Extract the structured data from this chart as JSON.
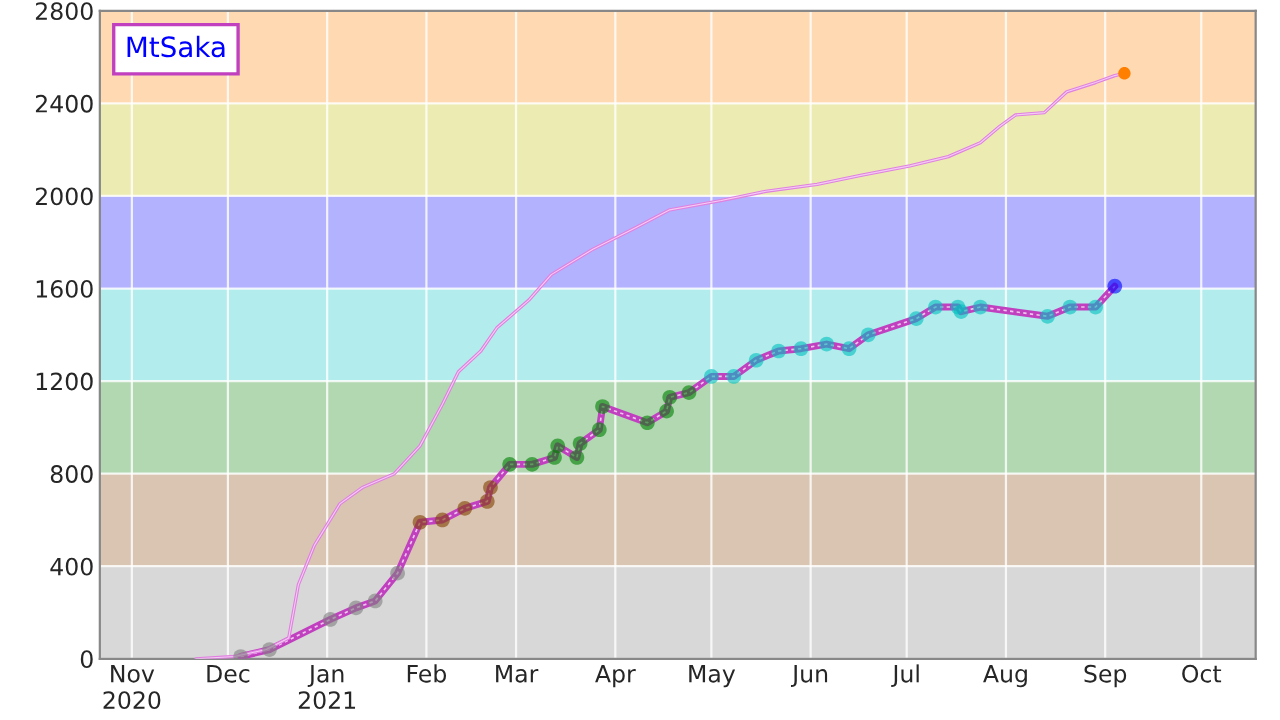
{
  "chart_data": {
    "type": "line",
    "xlim": [
      "2020-10-22",
      "2021-10-18"
    ],
    "ylim": [
      0,
      2800
    ],
    "xticks": [
      {
        "value": "2020-11-01",
        "label": "Nov\n2020"
      },
      {
        "value": "2020-12-01",
        "label": "Dec"
      },
      {
        "value": "2021-01-01",
        "label": "Jan\n2021"
      },
      {
        "value": "2021-02-01",
        "label": "Feb"
      },
      {
        "value": "2021-03-01",
        "label": "Mar"
      },
      {
        "value": "2021-04-01",
        "label": "Apr"
      },
      {
        "value": "2021-05-01",
        "label": "May"
      },
      {
        "value": "2021-06-01",
        "label": "Jun"
      },
      {
        "value": "2021-07-01",
        "label": "Jul"
      },
      {
        "value": "2021-08-01",
        "label": "Aug"
      },
      {
        "value": "2021-09-01",
        "label": "Sep"
      },
      {
        "value": "2021-10-01",
        "label": "Oct"
      }
    ],
    "yticks": [
      0,
      400,
      800,
      1200,
      1600,
      2000,
      2400,
      2800
    ],
    "grid": true,
    "legend": "top left",
    "bands": [
      {
        "axis": "y",
        "from": 0,
        "to": 400,
        "color": "#d8d8d8"
      },
      {
        "axis": "y",
        "from": 400,
        "to": 800,
        "color": "#d9c5b2"
      },
      {
        "axis": "y",
        "from": 800,
        "to": 1200,
        "color": "#b2d8b2"
      },
      {
        "axis": "y",
        "from": 1200,
        "to": 1600,
        "color": "#b2ecec"
      },
      {
        "axis": "y",
        "from": 1600,
        "to": 2000,
        "color": "#b2b2ff"
      },
      {
        "axis": "y",
        "from": 2000,
        "to": 2400,
        "color": "#ececb2"
      },
      {
        "axis": "y",
        "from": 2400,
        "to": 2800,
        "color": "#ffd9b2"
      }
    ],
    "series": [
      {
        "name": "MtSaka",
        "marker": "circle",
        "color": "#c040c0",
        "x": [
          "2020-12-05",
          "2020-12-14",
          "2021-01-02",
          "2021-01-10",
          "2021-01-16",
          "2021-01-23",
          "2021-01-30",
          "2021-02-06",
          "2021-02-13",
          "2021-02-20",
          "2021-02-21",
          "2021-02-27",
          "2021-03-06",
          "2021-03-13",
          "2021-03-14",
          "2021-03-20",
          "2021-03-21",
          "2021-03-27",
          "2021-03-28",
          "2021-04-11",
          "2021-04-17",
          "2021-04-18",
          "2021-04-24",
          "2021-05-01",
          "2021-05-08",
          "2021-05-15",
          "2021-05-22",
          "2021-05-29",
          "2021-06-06",
          "2021-06-13",
          "2021-06-19",
          "2021-07-04",
          "2021-07-10",
          "2021-07-17",
          "2021-07-18",
          "2021-07-24",
          "2021-08-14",
          "2021-08-21",
          "2021-08-29",
          "2021-09-04"
        ],
        "values": [
          10,
          40,
          170,
          220,
          250,
          370,
          590,
          600,
          650,
          680,
          740,
          840,
          840,
          870,
          920,
          870,
          930,
          990,
          1090,
          1020,
          1070,
          1130,
          1150,
          1220,
          1220,
          1290,
          1330,
          1340,
          1360,
          1340,
          1400,
          1470,
          1520,
          1520,
          1500,
          1520,
          1480,
          1520,
          1520,
          1610
        ],
        "colors": [
          "#808080",
          "#808080",
          "#808080",
          "#808080",
          "#808080",
          "#808080",
          "#804000",
          "#804000",
          "#804000",
          "#804000",
          "#804000",
          "#008000",
          "#008000",
          "#008000",
          "#008000",
          "#008000",
          "#008000",
          "#008000",
          "#008000",
          "#008000",
          "#008000",
          "#008000",
          "#008000",
          "#00c0c0",
          "#00c0c0",
          "#00c0c0",
          "#00c0c0",
          "#00c0c0",
          "#00c0c0",
          "#00c0c0",
          "#00c0c0",
          "#00c0c0",
          "#00c0c0",
          "#00c0c0",
          "#00c0c0",
          "#00c0c0",
          "#00c0c0",
          "#00c0c0",
          "#00c0c0",
          "#0000ff"
        ]
      },
      {
        "marker": "none",
        "color": "#e080e0",
        "x": [
          "2020-11-21",
          "2020-12-03",
          "2020-12-13",
          "2020-12-20",
          "2020-12-23",
          "2020-12-28",
          "2021-01-05",
          "2021-01-12",
          "2021-01-22",
          "2021-01-30",
          "2021-02-06",
          "2021-02-11",
          "2021-02-18",
          "2021-02-23",
          "2021-03-05",
          "2021-03-12",
          "2021-03-25",
          "2021-04-07",
          "2021-04-18",
          "2021-05-04",
          "2021-05-18",
          "2021-06-03",
          "2021-06-17",
          "2021-07-02",
          "2021-07-14",
          "2021-07-24",
          "2021-07-30",
          "2021-08-04",
          "2021-08-13",
          "2021-08-20",
          "2021-08-29",
          "2021-09-04",
          "2021-09-07"
        ],
        "values": [
          0,
          10,
          40,
          90,
          320,
          490,
          670,
          740,
          800,
          920,
          1100,
          1240,
          1330,
          1430,
          1550,
          1660,
          1770,
          1860,
          1940,
          1980,
          2020,
          2050,
          2090,
          2130,
          2170,
          2230,
          2300,
          2350,
          2360,
          2450,
          2490,
          2520,
          2530
        ]
      },
      {
        "type": "scatter",
        "marker": "circle",
        "color": "#ff8000",
        "x": [
          "2021-09-07"
        ],
        "values": [
          2530
        ]
      }
    ]
  }
}
